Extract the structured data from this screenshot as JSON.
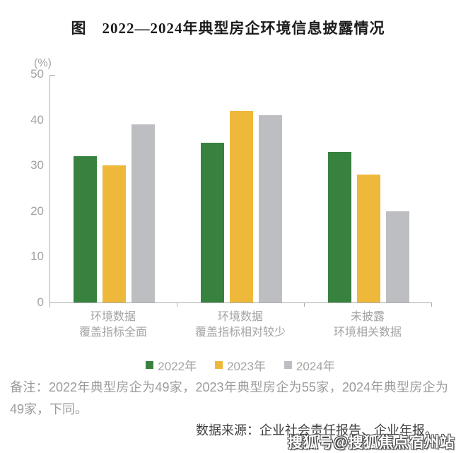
{
  "title": "图　2022—2024年典型房企环境信息披露情况",
  "chart_data": {
    "type": "bar",
    "title": "图　2022—2024年典型房企环境信息披露情况",
    "unit_label": "(%)",
    "categories": [
      "环境数据\n覆盖指标全面",
      "环境数据\n覆盖指标相对较少",
      "未披露\n环境相关数据"
    ],
    "series": [
      {
        "name": "2022年",
        "color": "#38823F",
        "values": [
          32,
          35,
          33
        ]
      },
      {
        "name": "2023年",
        "color": "#EEB93B",
        "values": [
          30,
          42,
          28
        ]
      },
      {
        "name": "2024年",
        "color": "#BCBEC1",
        "values": [
          39,
          41,
          20
        ]
      }
    ],
    "ylabel": "(%)",
    "xlabel": "",
    "ylim": [
      0,
      50
    ],
    "yticks": [
      0,
      10,
      20,
      30,
      40,
      50
    ],
    "grid": false,
    "legend_position": "bottom",
    "axis_color": "#adadad",
    "label_color": "#a3a3a3"
  },
  "notes": {
    "remark": "备注：2022年典型房企为49家，2023年典型房企为55家，2024年典型房企为49家，下同。",
    "source": "数据来源：企业社会责任报告、企业年报。"
  },
  "watermark": {
    "text": "搜狐号@搜狐焦点宿州站"
  }
}
